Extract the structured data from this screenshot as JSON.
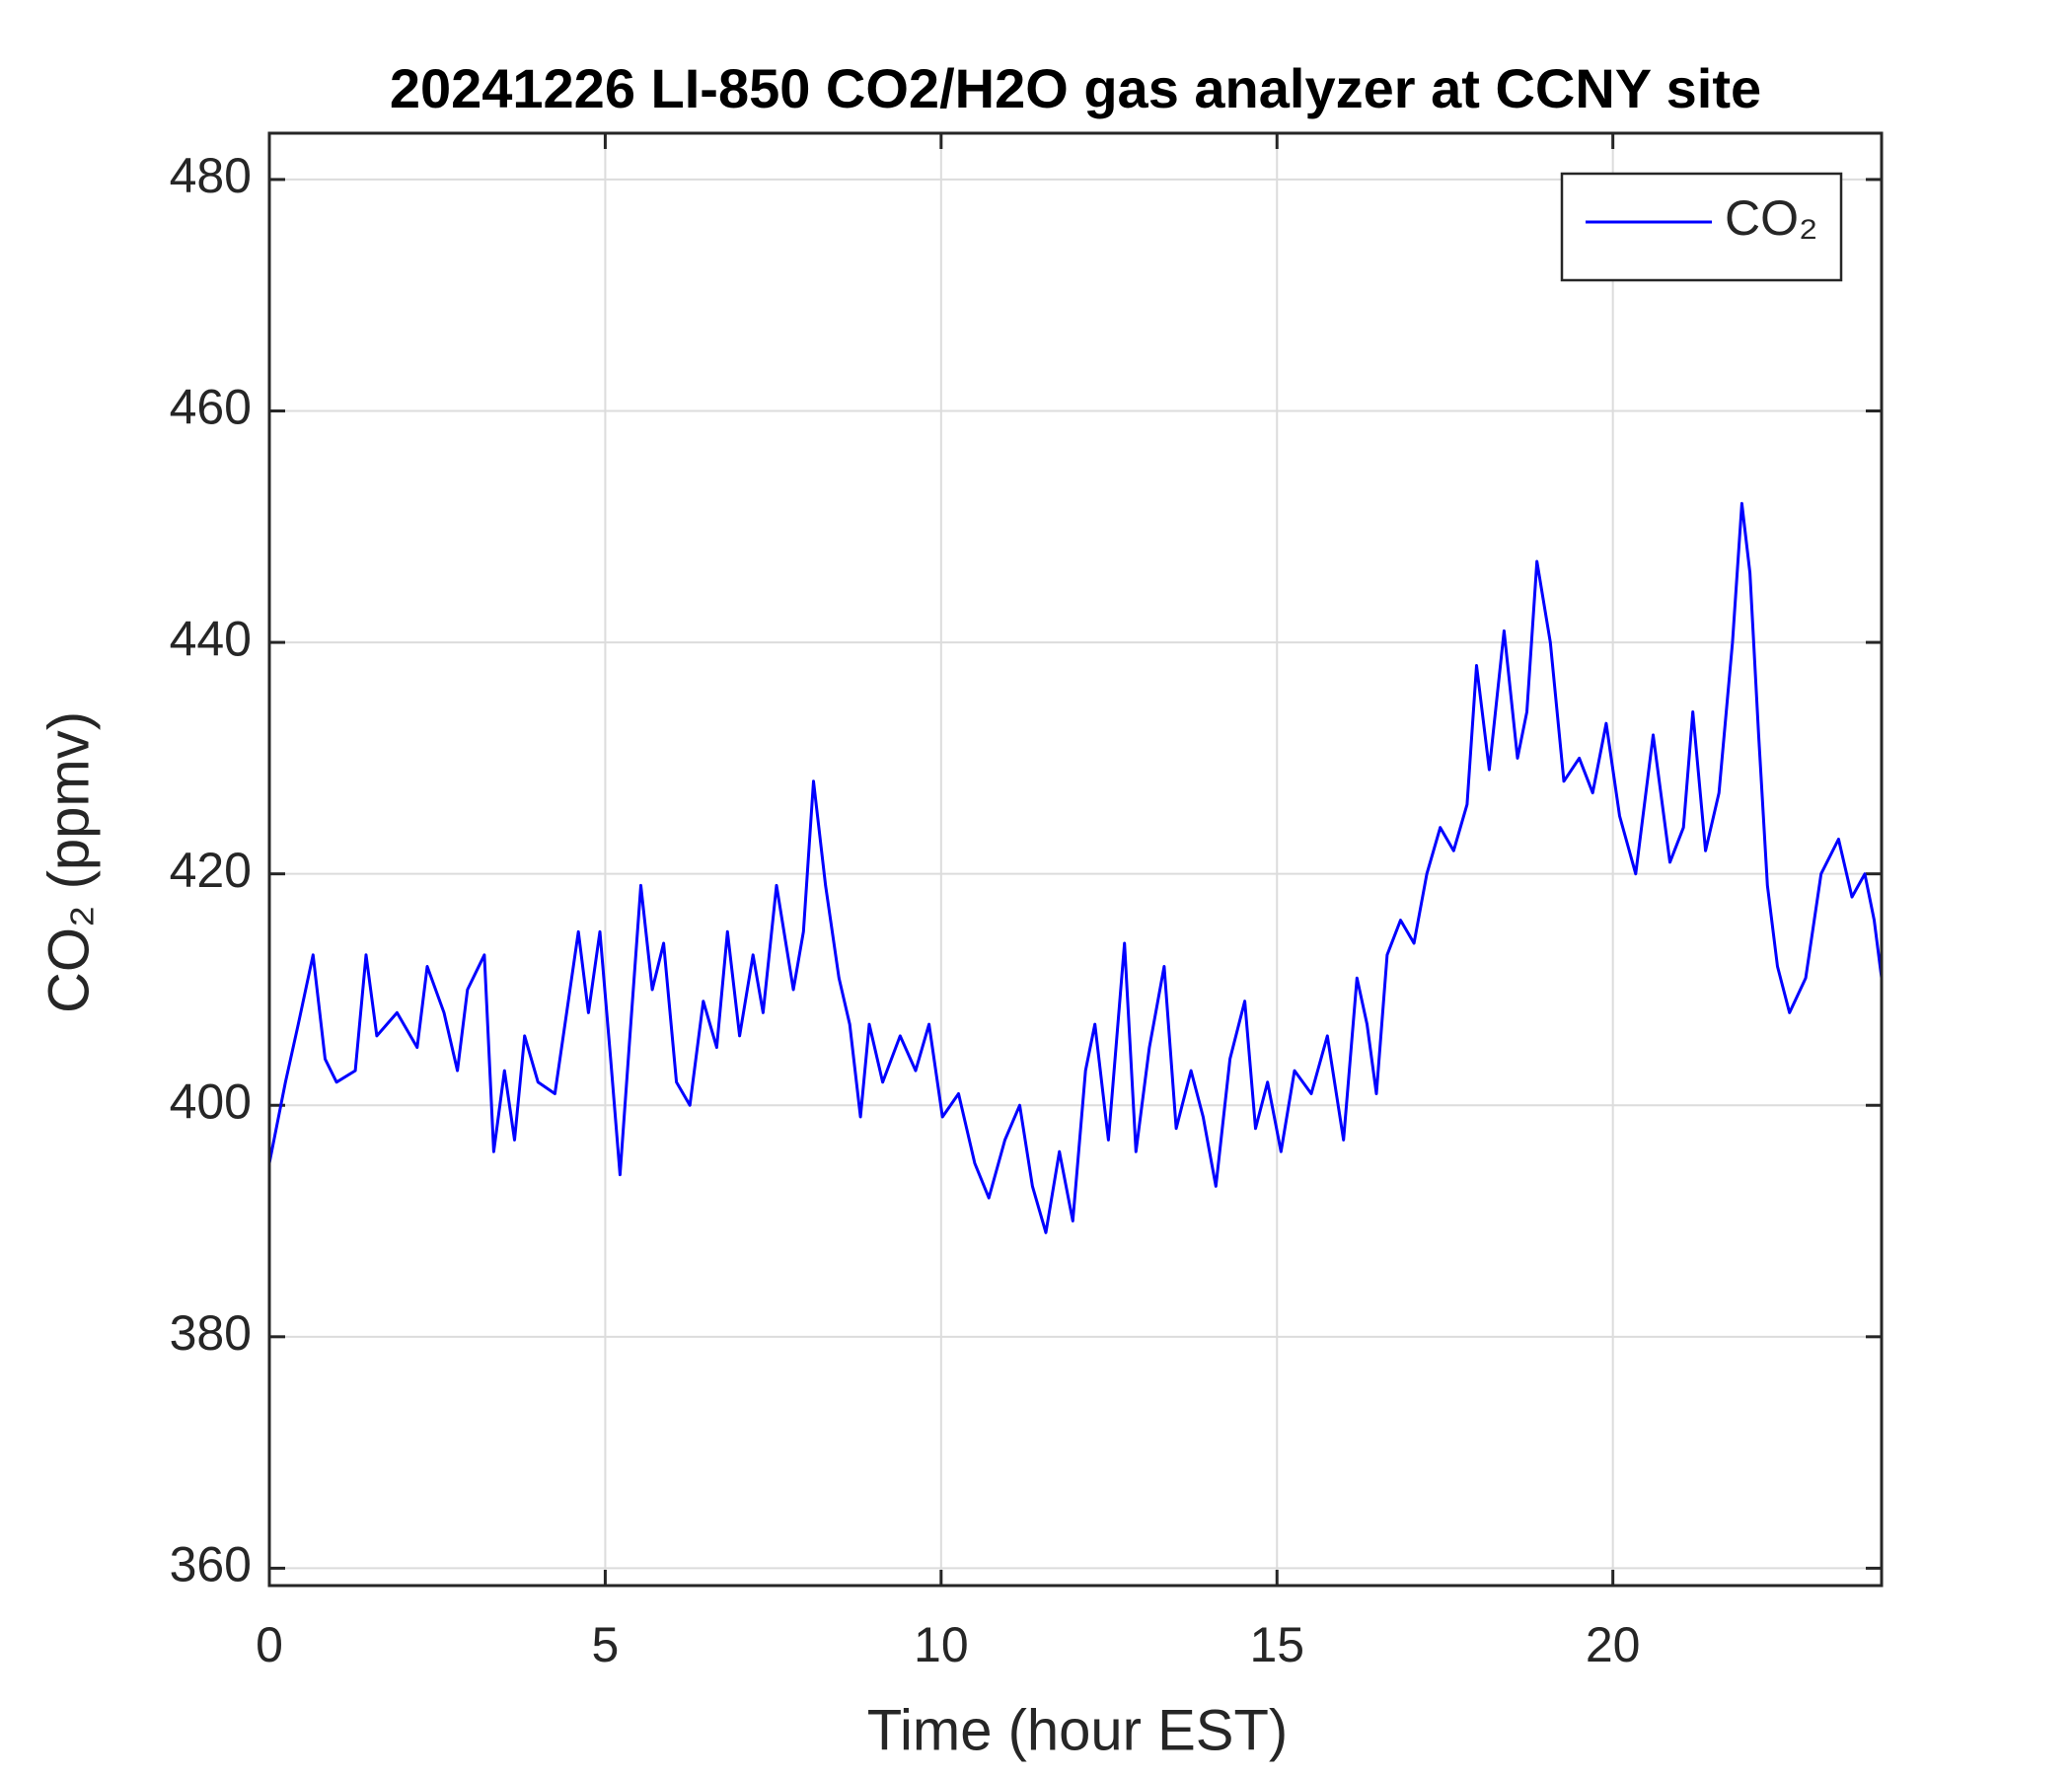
{
  "chart_data": {
    "type": "line",
    "title": "20241226 LI-850 CO2/H2O gas analyzer at CCNY site",
    "x_label": "Time (hour EST)",
    "y_label": "CO₂ (ppmv)",
    "x": [
      0,
      0.24,
      0.43,
      0.65,
      0.83,
      1.0,
      1.28,
      1.44,
      1.6,
      1.9,
      2.2,
      2.35,
      2.6,
      2.8,
      2.95,
      3.2,
      3.34,
      3.5,
      3.65,
      3.8,
      4.0,
      4.25,
      4.45,
      4.6,
      4.75,
      4.92,
      5.08,
      5.22,
      5.38,
      5.53,
      5.7,
      5.87,
      6.06,
      6.26,
      6.46,
      6.66,
      6.82,
      7.0,
      7.2,
      7.35,
      7.55,
      7.8,
      7.95,
      8.1,
      8.28,
      8.48,
      8.64,
      8.8,
      8.93,
      9.13,
      9.39,
      9.62,
      9.82,
      10.02,
      10.26,
      10.5,
      10.71,
      10.95,
      11.17,
      11.36,
      11.56,
      11.76,
      11.96,
      12.15,
      12.29,
      12.49,
      12.73,
      12.9,
      13.1,
      13.32,
      13.5,
      13.72,
      13.9,
      14.09,
      14.3,
      14.52,
      14.68,
      14.86,
      15.06,
      15.26,
      15.51,
      15.75,
      15.99,
      16.19,
      16.34,
      16.48,
      16.64,
      16.84,
      17.04,
      17.23,
      17.43,
      17.63,
      17.83,
      17.97,
      18.16,
      18.38,
      18.58,
      18.72,
      18.87,
      19.07,
      19.27,
      19.5,
      19.7,
      19.9,
      20.1,
      20.34,
      20.6,
      20.85,
      21.05,
      21.19,
      21.38,
      21.58,
      21.78,
      21.92,
      22.04,
      22.17,
      22.3,
      22.45,
      22.63,
      22.87,
      23.1,
      23.36,
      23.56,
      23.75,
      23.89,
      24.0
    ],
    "series": [
      {
        "name": "CO₂",
        "color": "#0000ff",
        "values": [
          395,
          402,
          407,
          413,
          404,
          402,
          403,
          413,
          406,
          408,
          405,
          412,
          408,
          403,
          410,
          413,
          396,
          403,
          397,
          406,
          402,
          401,
          409,
          415,
          408,
          415,
          404,
          394,
          407,
          419,
          410,
          414,
          402,
          400,
          409,
          405,
          415,
          406,
          413,
          408,
          419,
          410,
          415,
          428,
          419,
          411,
          407,
          399,
          407,
          402,
          406,
          403,
          407,
          399,
          401,
          395,
          392,
          397,
          400,
          393,
          389,
          396,
          390,
          403,
          407,
          397,
          414,
          396,
          405,
          412,
          398,
          403,
          399,
          393,
          404,
          409,
          398,
          402,
          396,
          403,
          401,
          406,
          397,
          411,
          407,
          401,
          413,
          416,
          414,
          420,
          424,
          422,
          426,
          438,
          429,
          441,
          430,
          434,
          447,
          440,
          428,
          430,
          427,
          433,
          425,
          420,
          432,
          421,
          424,
          434,
          422,
          427,
          440,
          452,
          446,
          432,
          419,
          412,
          408,
          411,
          420,
          423,
          418,
          420,
          416,
          411
        ]
      }
    ],
    "xlim": [
      0,
      24
    ],
    "ylim": [
      358.5,
      484
    ],
    "xticks": [
      0,
      5,
      10,
      15,
      20
    ],
    "yticks": [
      360,
      380,
      400,
      420,
      440,
      460,
      480
    ],
    "grid": true,
    "legend": "upper right"
  }
}
